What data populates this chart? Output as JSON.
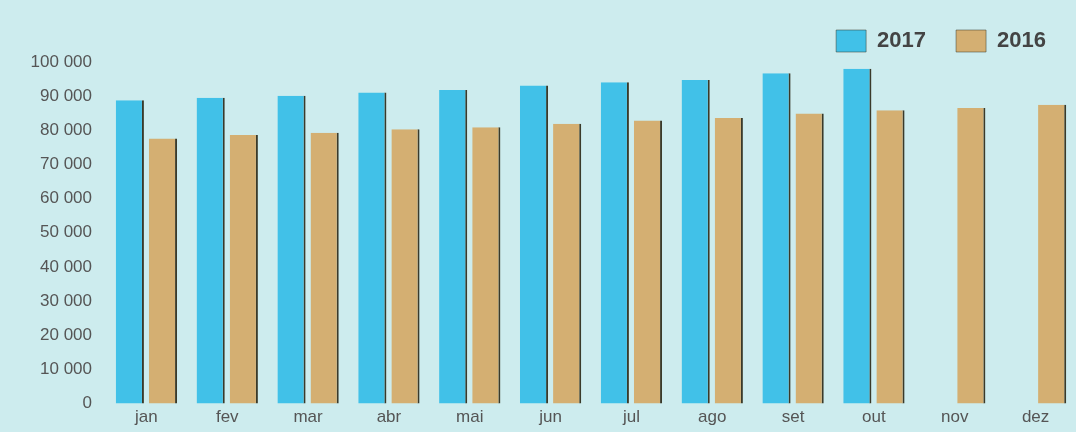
{
  "chart_data": {
    "type": "bar",
    "categories": [
      "jan",
      "fev",
      "mar",
      "abr",
      "mai",
      "jun",
      "jul",
      "ago",
      "set",
      "out",
      "nov",
      "dez"
    ],
    "series": [
      {
        "name": "2017",
        "color": "#41c1e8",
        "values": [
          88800,
          89500,
          90100,
          91100,
          91800,
          93100,
          94100,
          94700,
          96700,
          98000,
          null,
          null
        ]
      },
      {
        "name": "2016",
        "color": "#d4af72",
        "values": [
          77600,
          78600,
          79300,
          80300,
          80900,
          81900,
          82900,
          83600,
          84900,
          85900,
          86500,
          87500
        ]
      }
    ],
    "ylim": [
      0,
      100000
    ],
    "yticks": [
      {
        "value": 0,
        "label": "0"
      },
      {
        "value": 10000,
        "label": "10 000"
      },
      {
        "value": 20000,
        "label": "20 000"
      },
      {
        "value": 30000,
        "label": "30 000"
      },
      {
        "value": 40000,
        "label": "40 000"
      },
      {
        "value": 50000,
        "label": "50 000"
      },
      {
        "value": 60000,
        "label": "60 000"
      },
      {
        "value": 70000,
        "label": "70 000"
      },
      {
        "value": 80000,
        "label": "80 000"
      },
      {
        "value": 90000,
        "label": "90 000"
      },
      {
        "value": 100000,
        "label": "100 000"
      }
    ],
    "grid": false,
    "legend": "top right"
  }
}
